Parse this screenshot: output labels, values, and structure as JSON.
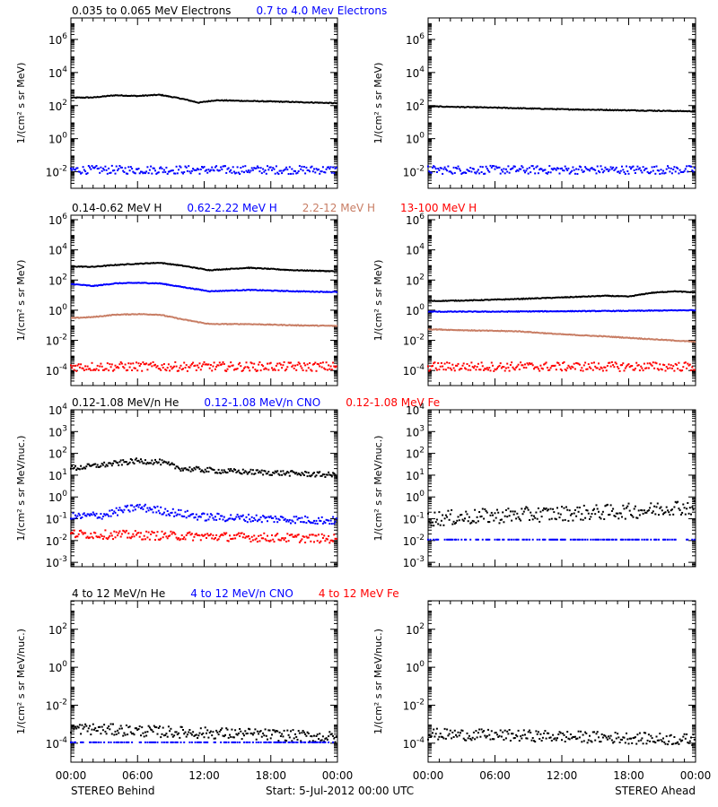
{
  "colors": {
    "black": "#000000",
    "blue": "#0000ff",
    "brown": "#c87d64",
    "red": "#ff0000"
  },
  "footer": {
    "left": "STEREO Behind",
    "center": "Start:  5-Jul-2012 00:00 UTC",
    "right": "STEREO Ahead"
  },
  "chart_data": [
    {
      "type": "scatter",
      "panel": "behind-electrons",
      "title_segments": [
        {
          "text": "0.035 to 0.065 MeV Electrons",
          "color": "#000000"
        },
        {
          "text": "0.7 to 4.0 Mev Electrons",
          "color": "#0000ff"
        }
      ],
      "ylabel": "1/(cm² s sr MeV)",
      "yscale": "log",
      "yticks": [
        "10^-2",
        "10^0",
        "10^2",
        "10^4",
        "10^6"
      ],
      "xticks": [
        "00:00",
        "06:00",
        "12:00",
        "18:00",
        "00:00"
      ],
      "x_range_hours": [
        0,
        24
      ],
      "series": [
        {
          "color": "#000000",
          "style": "line",
          "x": [
            0,
            2,
            4,
            6,
            8,
            10,
            11.5,
            13,
            16,
            20,
            24
          ],
          "y": [
            300,
            310,
            420,
            380,
            450,
            260,
            150,
            210,
            190,
            165,
            140
          ]
        },
        {
          "color": "#0000ff",
          "style": "scatter",
          "x": [
            0,
            24
          ],
          "y": [
            0.013,
            0.013
          ],
          "spread": 0.25
        }
      ]
    },
    {
      "type": "scatter",
      "panel": "ahead-electrons",
      "title_segments": [],
      "ylabel": "1/(cm² s sr MeV)",
      "yscale": "log",
      "yticks": [
        "10^-2",
        "10^0",
        "10^2",
        "10^4",
        "10^6"
      ],
      "xticks": [
        "00:00",
        "06:00",
        "12:00",
        "18:00",
        "00:00"
      ],
      "x_range_hours": [
        0,
        24
      ],
      "series": [
        {
          "color": "#000000",
          "style": "line",
          "x": [
            0,
            6,
            12,
            18,
            24
          ],
          "y": [
            90,
            75,
            60,
            52,
            45
          ]
        },
        {
          "color": "#0000ff",
          "style": "scatter",
          "x": [
            0,
            24
          ],
          "y": [
            0.013,
            0.013
          ],
          "spread": 0.25
        }
      ]
    },
    {
      "type": "line",
      "panel": "behind-protons",
      "title_segments": [
        {
          "text": "0.14-0.62 MeV H",
          "color": "#000000"
        },
        {
          "text": "0.62-2.22 MeV H",
          "color": "#0000ff"
        },
        {
          "text": "2.2-12 MeV H",
          "color": "#c87d64"
        },
        {
          "text": "13-100 MeV H",
          "color": "#ff0000"
        }
      ],
      "ylabel": "1/(cm² s sr MeV)",
      "yscale": "log",
      "yticks": [
        "10^-4",
        "10^-2",
        "10^0",
        "10^2",
        "10^4",
        "10^6"
      ],
      "xticks": [
        "00:00",
        "06:00",
        "12:00",
        "18:00",
        "00:00"
      ],
      "x_range_hours": [
        0,
        24
      ],
      "series": [
        {
          "color": "#000000",
          "style": "line",
          "x": [
            0,
            2,
            4,
            6,
            8,
            10,
            12.5,
            16,
            20,
            24
          ],
          "y": [
            800,
            750,
            1000,
            1200,
            1400,
            900,
            450,
            650,
            450,
            380
          ]
        },
        {
          "color": "#0000ff",
          "style": "line",
          "x": [
            0,
            2,
            4,
            6,
            8,
            10,
            12.5,
            16,
            20,
            24
          ],
          "y": [
            55,
            40,
            60,
            65,
            60,
            35,
            18,
            22,
            18,
            16
          ]
        },
        {
          "color": "#c87d64",
          "style": "line",
          "x": [
            0,
            2,
            4,
            6,
            8,
            10,
            12.5,
            16,
            20,
            24
          ],
          "y": [
            0.3,
            0.35,
            0.5,
            0.55,
            0.5,
            0.25,
            0.12,
            0.12,
            0.1,
            0.09
          ]
        },
        {
          "color": "#ff0000",
          "style": "scatter",
          "x": [
            0,
            24
          ],
          "y": [
            0.00018,
            0.00018
          ],
          "spread": 0.3
        }
      ]
    },
    {
      "type": "line",
      "panel": "ahead-protons",
      "title_segments": [],
      "ylabel": "1/(cm² s sr MeV)",
      "yscale": "log",
      "yticks": [
        "10^-4",
        "10^-2",
        "10^0",
        "10^2",
        "10^4",
        "10^6"
      ],
      "xticks": [
        "00:00",
        "06:00",
        "12:00",
        "18:00",
        "00:00"
      ],
      "x_range_hours": [
        0,
        24
      ],
      "series": [
        {
          "color": "#000000",
          "style": "line",
          "x": [
            0,
            4,
            8,
            12,
            16,
            18,
            20,
            22,
            24
          ],
          "y": [
            4,
            4.5,
            5.5,
            7,
            9,
            8,
            14,
            18,
            15
          ]
        },
        {
          "color": "#0000ff",
          "style": "line",
          "x": [
            0,
            6,
            12,
            18,
            24
          ],
          "y": [
            0.8,
            0.8,
            0.85,
            0.9,
            1.0
          ]
        },
        {
          "color": "#c87d64",
          "style": "line",
          "x": [
            0,
            4,
            8,
            12,
            16,
            20,
            24
          ],
          "y": [
            0.055,
            0.045,
            0.04,
            0.025,
            0.018,
            0.012,
            0.008
          ]
        },
        {
          "color": "#ff0000",
          "style": "scatter",
          "x": [
            0,
            24
          ],
          "y": [
            0.00018,
            0.00018
          ],
          "spread": 0.3
        }
      ]
    },
    {
      "type": "scatter",
      "panel": "behind-heavy-low",
      "title_segments": [
        {
          "text": "0.12-1.08 MeV/n He",
          "color": "#000000"
        },
        {
          "text": "0.12-1.08 MeV/n CNO",
          "color": "#0000ff"
        },
        {
          "text": "0.12-1.08 MeV Fe",
          "color": "#ff0000"
        }
      ],
      "ylabel": "1/(cm² s sr MeV/nuc.)",
      "yscale": "log",
      "yticks": [
        "10^-3",
        "10^-2",
        "10^-1",
        "10^0",
        "10^1",
        "10^2",
        "10^3",
        "10^4"
      ],
      "xticks": [
        "00:00",
        "06:00",
        "12:00",
        "18:00",
        "00:00"
      ],
      "x_range_hours": [
        0,
        24
      ],
      "series": [
        {
          "color": "#000000",
          "style": "scatter",
          "x": [
            0,
            3,
            6,
            8,
            10,
            14,
            18,
            24
          ],
          "y": [
            20,
            30,
            45,
            40,
            20,
            15,
            13,
            10
          ],
          "spread": 0.12
        },
        {
          "color": "#0000ff",
          "style": "scatter",
          "x": [
            0,
            3,
            6,
            9,
            12,
            18,
            24
          ],
          "y": [
            0.12,
            0.15,
            0.35,
            0.2,
            0.12,
            0.1,
            0.08
          ],
          "spread": 0.18
        },
        {
          "color": "#ff0000",
          "style": "scatter",
          "x": [
            0,
            24
          ],
          "y": [
            0.02,
            0.012
          ],
          "spread": 0.2
        }
      ]
    },
    {
      "type": "scatter",
      "panel": "ahead-heavy-low",
      "title_segments": [],
      "ylabel": "1/(cm² s sr MeV/nuc.)",
      "yscale": "log",
      "yticks": [
        "10^-3",
        "10^-2",
        "10^-1",
        "10^0",
        "10^1",
        "10^2",
        "10^3",
        "10^4"
      ],
      "xticks": [
        "00:00",
        "06:00",
        "12:00",
        "18:00",
        "00:00"
      ],
      "x_range_hours": [
        0,
        24
      ],
      "series": [
        {
          "color": "#000000",
          "style": "scatter",
          "x": [
            0,
            8,
            16,
            20,
            22,
            24
          ],
          "y": [
            0.1,
            0.15,
            0.2,
            0.25,
            0.35,
            0.3
          ],
          "spread": 0.35
        },
        {
          "color": "#0000ff",
          "style": "scatter",
          "x": [
            0,
            24
          ],
          "y": [
            0.011,
            0.011
          ],
          "spread": 0.0
        }
      ]
    },
    {
      "type": "scatter",
      "panel": "behind-heavy-high",
      "title_segments": [
        {
          "text": "4 to 12 MeV/n He",
          "color": "#000000"
        },
        {
          "text": "4 to 12 MeV/n CNO",
          "color": "#0000ff"
        },
        {
          "text": "4 to 12 MeV Fe",
          "color": "#ff0000"
        }
      ],
      "ylabel": "1/(cm² s sr MeV/nuc.)",
      "yscale": "log",
      "yticks": [
        "10^-4",
        "10^-2",
        "10^0",
        "10^2"
      ],
      "xticks": [
        "00:00",
        "06:00",
        "12:00",
        "18:00",
        "00:00"
      ],
      "x_range_hours": [
        0,
        24
      ],
      "series": [
        {
          "color": "#000000",
          "style": "scatter",
          "x": [
            0,
            4,
            8,
            12,
            16,
            20,
            24
          ],
          "y": [
            0.0006,
            0.0005,
            0.0004,
            0.00035,
            0.0003,
            0.00025,
            0.0002
          ],
          "spread": 0.3
        },
        {
          "color": "#0000ff",
          "style": "scatter",
          "x": [
            0,
            24
          ],
          "y": [
            0.00011,
            0.00011
          ],
          "spread": 0.0
        }
      ]
    },
    {
      "type": "scatter",
      "panel": "ahead-heavy-high",
      "title_segments": [],
      "ylabel": "1/(cm² s sr MeV/nuc.)",
      "yscale": "log",
      "yticks": [
        "10^-4",
        "10^-2",
        "10^0",
        "10^2"
      ],
      "xticks": [
        "00:00",
        "06:00",
        "12:00",
        "18:00",
        "00:00"
      ],
      "x_range_hours": [
        0,
        24
      ],
      "series": [
        {
          "color": "#000000",
          "style": "scatter",
          "x": [
            0,
            8,
            16,
            24
          ],
          "y": [
            0.0003,
            0.00025,
            0.0002,
            0.00015
          ],
          "spread": 0.3
        }
      ]
    }
  ]
}
